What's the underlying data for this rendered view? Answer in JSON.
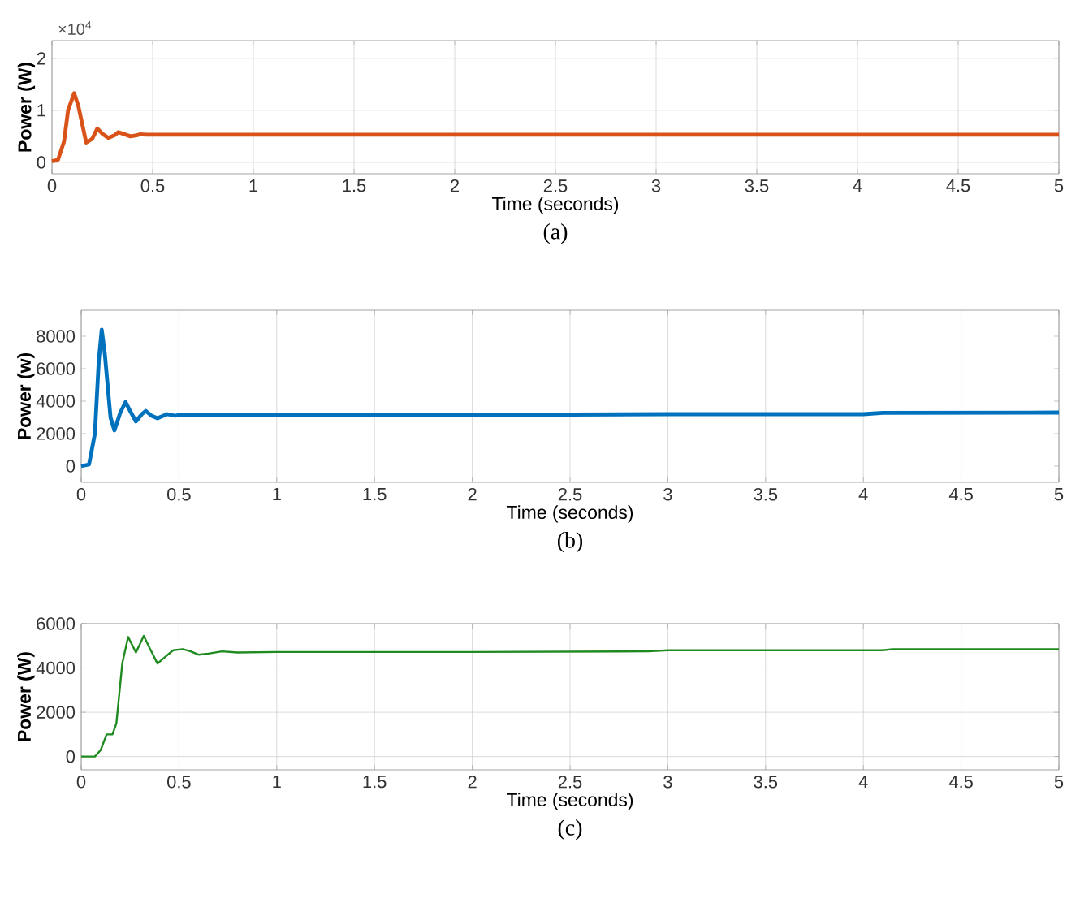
{
  "chart_data": [
    {
      "type": "line",
      "xlabel": "Time (seconds)",
      "ylabel": "Power (W)",
      "color": "#d95319",
      "grid": true,
      "x": [
        0,
        0.03,
        0.06,
        0.08,
        0.11,
        0.13,
        0.17,
        0.2,
        0.225,
        0.25,
        0.28,
        0.31,
        0.33,
        0.36,
        0.39,
        0.42,
        0.44,
        0.47,
        0.5,
        1,
        2,
        3,
        4,
        5
      ],
      "values": [
        0.02,
        0.05,
        0.4,
        1.0,
        1.33,
        1.1,
        0.38,
        0.45,
        0.65,
        0.55,
        0.47,
        0.52,
        0.58,
        0.54,
        0.5,
        0.52,
        0.54,
        0.53,
        0.53,
        0.53,
        0.53,
        0.53,
        0.53,
        0.53
      ],
      "xlim": [
        0,
        5
      ],
      "ylim": [
        -0.22,
        2.34
      ],
      "xticks": [
        0,
        0.5,
        1,
        1.5,
        2,
        2.5,
        3,
        3.5,
        4,
        4.5,
        5
      ],
      "yticks": [
        0,
        1,
        2
      ],
      "annotations": [
        "×10$^{4}$",
        "(a)"
      ]
    },
    {
      "type": "line",
      "xlabel": "Time (seconds)",
      "ylabel": "Power (w)",
      "color": "#0072bd",
      "grid": "x",
      "x": [
        0,
        0.04,
        0.07,
        0.09,
        0.105,
        0.12,
        0.15,
        0.17,
        0.2,
        0.227,
        0.25,
        0.28,
        0.31,
        0.33,
        0.36,
        0.39,
        0.44,
        0.48,
        0.5,
        1,
        2,
        3,
        4,
        4.1,
        5
      ],
      "values": [
        0,
        100,
        2000,
        6500,
        8400,
        7000,
        3000,
        2200,
        3300,
        3950,
        3400,
        2750,
        3200,
        3400,
        3100,
        2950,
        3200,
        3100,
        3150,
        3150,
        3150,
        3200,
        3200,
        3280,
        3300
      ],
      "xlim": [
        0,
        5
      ],
      "ylim": [
        -1000,
        9600
      ],
      "xticks": [
        0,
        0.5,
        1,
        1.5,
        2,
        2.5,
        3,
        3.5,
        4,
        4.5,
        5
      ],
      "yticks": [
        0,
        2000,
        4000,
        6000,
        8000
      ],
      "annotations": [
        "(b)"
      ]
    },
    {
      "type": "line",
      "xlabel": "Time (seconds)",
      "ylabel": "Power (W)",
      "color": "#1f8a1f",
      "grid": true,
      "x": [
        0,
        0.07,
        0.1,
        0.13,
        0.16,
        0.18,
        0.21,
        0.24,
        0.28,
        0.32,
        0.35,
        0.39,
        0.43,
        0.47,
        0.52,
        0.56,
        0.6,
        0.65,
        0.72,
        0.8,
        1,
        2,
        2.9,
        3,
        4.1,
        4.15,
        5
      ],
      "values": [
        0,
        0,
        300,
        1000,
        1000,
        1500,
        4200,
        5400,
        4700,
        5450,
        4900,
        4200,
        4500,
        4800,
        4850,
        4750,
        4600,
        4650,
        4750,
        4700,
        4720,
        4720,
        4750,
        4800,
        4800,
        4850,
        4850
      ],
      "xlim": [
        0,
        5
      ],
      "ylim": [
        -600,
        6000
      ],
      "xticks": [
        0,
        0.5,
        1,
        1.5,
        2,
        2.5,
        3,
        3.5,
        4,
        4.5,
        5
      ],
      "yticks": [
        0,
        2000,
        4000,
        6000
      ],
      "annotations": [
        "(c)"
      ]
    }
  ]
}
